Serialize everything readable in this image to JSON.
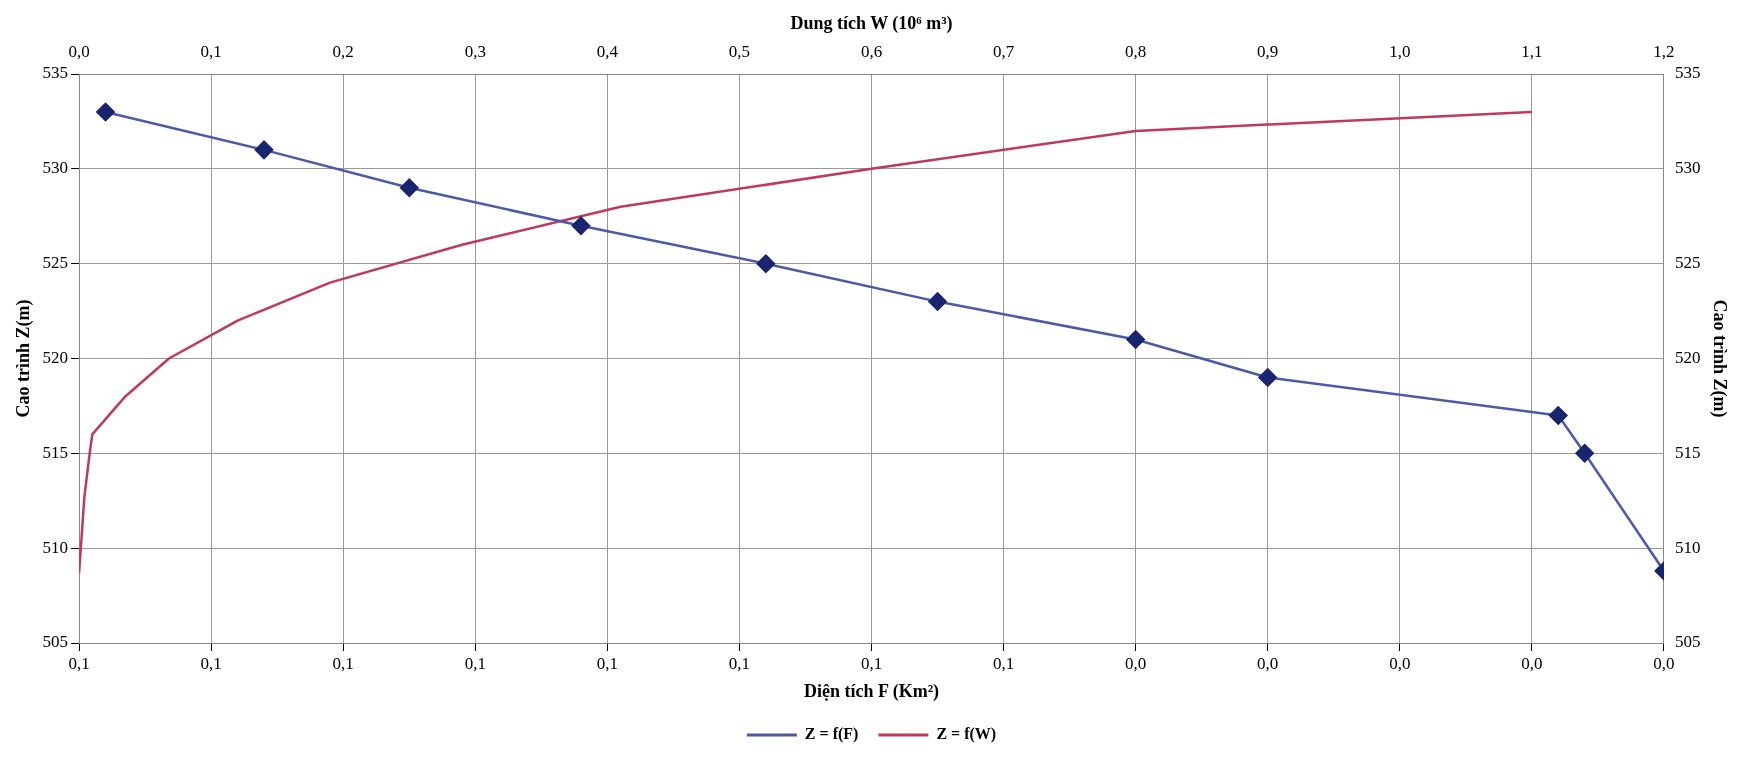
{
  "chart_data": {
    "type": "line",
    "xlabel": "Diện tích F (Km²)",
    "x2label": "Dung tích W (10⁶ m³)",
    "ylabel": "Cao trình Z(m)",
    "y2label": "Cao trình Z(m)",
    "xlim": [
      0.12,
      0
    ],
    "xticks": [
      {
        "value": 0.12,
        "label": "0,1"
      },
      {
        "value": 0.11,
        "label": "0,1"
      },
      {
        "value": 0.1,
        "label": "0,1"
      },
      {
        "value": 0.09,
        "label": "0,1"
      },
      {
        "value": 0.08,
        "label": "0,1"
      },
      {
        "value": 0.07,
        "label": "0,1"
      },
      {
        "value": 0.06,
        "label": "0,1"
      },
      {
        "value": 0.05,
        "label": "0,1"
      },
      {
        "value": 0.04,
        "label": "0,0"
      },
      {
        "value": 0.03,
        "label": "0,0"
      },
      {
        "value": 0.02,
        "label": "0,0"
      },
      {
        "value": 0.01,
        "label": "0,0"
      },
      {
        "value": 0,
        "label": "0,0"
      }
    ],
    "x2lim": [
      0,
      1.2
    ],
    "x2ticks": [
      {
        "value": 0,
        "label": "0,0"
      },
      {
        "value": 0.1,
        "label": "0,1"
      },
      {
        "value": 0.2,
        "label": "0,2"
      },
      {
        "value": 0.3,
        "label": "0,3"
      },
      {
        "value": 0.4,
        "label": "0,4"
      },
      {
        "value": 0.5,
        "label": "0,5"
      },
      {
        "value": 0.6,
        "label": "0,6"
      },
      {
        "value": 0.7,
        "label": "0,7"
      },
      {
        "value": 0.8,
        "label": "0,8"
      },
      {
        "value": 0.9,
        "label": "0,9"
      },
      {
        "value": 1.0,
        "label": "1,0"
      },
      {
        "value": 1.1,
        "label": "1,1"
      },
      {
        "value": 1.2,
        "label": "1,2"
      }
    ],
    "ylim": [
      505,
      535
    ],
    "yticks": [
      505,
      510,
      515,
      520,
      525,
      530,
      535
    ],
    "y2lim": [
      505,
      535
    ],
    "y2ticks": [
      505,
      510,
      515,
      520,
      525,
      530,
      535
    ],
    "grid": true,
    "legend": "bottom",
    "line_style": "solid",
    "series": [
      {
        "name": "Z = f(F)",
        "color": "#4a5aa8",
        "marker": "diamond",
        "x": [
          0.118,
          0.106,
          0.095,
          0.082,
          0.068,
          0.055,
          0.04,
          0.03,
          0.008,
          0.006,
          0
        ],
        "values": [
          533,
          531,
          529,
          527,
          525,
          523,
          521,
          519,
          517,
          515,
          508.8
        ]
      },
      {
        "name": "Z = f(W)",
        "color": "#c0395a",
        "marker": "none",
        "axis": "x2",
        "x": [
          0,
          0.004,
          0.008,
          0.01,
          0.035,
          0.068,
          0.12,
          0.19,
          0.29,
          0.41,
          0.6,
          0.8,
          1.1
        ],
        "values": [
          508.7,
          512.7,
          515,
          516,
          518,
          520,
          522,
          524,
          526,
          528,
          530,
          532,
          533
        ]
      }
    ]
  }
}
